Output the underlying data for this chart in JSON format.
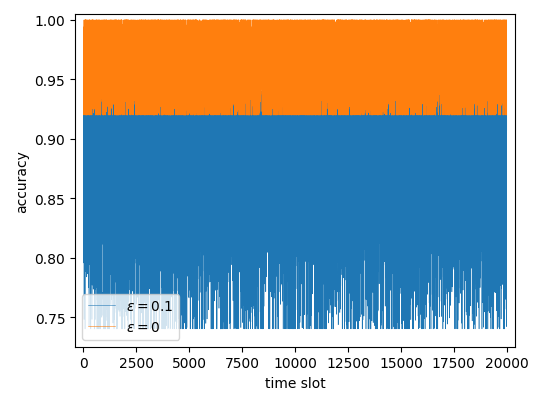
{
  "n_points": 20000,
  "blue_mean": 0.872,
  "blue_std": 0.04,
  "blue_low_mean": 0.868,
  "orange_mean": 0.965,
  "orange_std": 0.018,
  "blue_color": "#1f77b4",
  "orange_color": "#ff7f0e",
  "xlabel": "time slot",
  "ylabel": "accuracy",
  "label_blue": "$\\varepsilon = 0.1$",
  "label_orange": "$\\varepsilon = 0$",
  "xlim": [
    -400,
    20400
  ],
  "ylim": [
    0.725,
    1.005
  ],
  "xticks": [
    0,
    2500,
    5000,
    7500,
    10000,
    12500,
    15000,
    17500,
    20000
  ],
  "yticks": [
    0.75,
    0.8,
    0.85,
    0.9,
    0.95,
    1.0
  ],
  "seed": 42
}
